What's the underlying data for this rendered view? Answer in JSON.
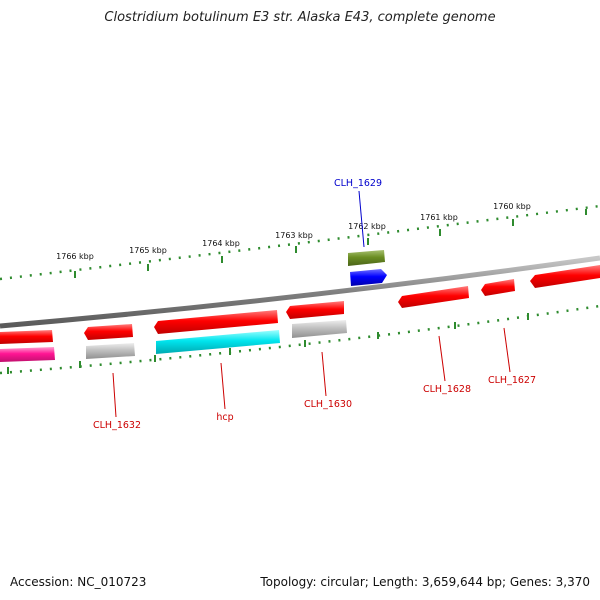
{
  "title": "Clostridium botulinum E3 str. Alaska E43, complete genome",
  "footer": {
    "accession": "Accession: NC_010723",
    "stats": "Topology: circular; Length: 3,659,644 bp; Genes: 3,370"
  },
  "colors": {
    "cds": "#ff0000",
    "rna": "#c0c0c0",
    "cyan_gene": "#00e5ee",
    "magenta_gene": "#ff1493",
    "olive_gene": "#6b8e23",
    "blue_gene": "#0000ff",
    "highlight_label": "#0000cc",
    "label": "#cc0000",
    "ticks": "#2e8b2e",
    "backbone": "#808080"
  },
  "ticks": [
    "1760 kbp",
    "1761 kbp",
    "1762 kbp",
    "1763 kbp",
    "1764 kbp",
    "1765 kbp",
    "1766 kbp"
  ],
  "gene_labels": {
    "clh1629": "CLH_1629",
    "clh1632": "CLH_1632",
    "hcp": "hcp",
    "clh1630": "CLH_1630",
    "clh1628": "CLH_1628",
    "clh1627": "CLH_1627"
  }
}
